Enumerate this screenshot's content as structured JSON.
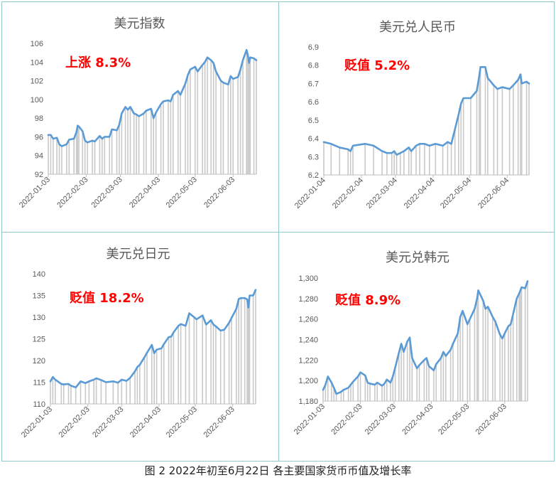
{
  "caption": "图 2 2022年初至6月22日 各主要国家货币币值及增长率",
  "colors": {
    "line": "#5b9bd5",
    "bar": "#c9c9c9",
    "annotation": "#ff0000",
    "border": "#8fc9c9"
  },
  "chart_data": [
    {
      "type": "line",
      "title": "美元指数",
      "annotation": "上涨 8.3%",
      "ylim": [
        92,
        106
      ],
      "yticks": [
        "92",
        "94",
        "96",
        "98",
        "100",
        "102",
        "104",
        "106"
      ],
      "xlim": [
        "2022-01-03",
        "2022-06-22"
      ],
      "xticks": [
        "2022-01-03",
        "2022-02-03",
        "2022-03-03",
        "2022-04-03",
        "2022-05-03",
        "2022-06-03"
      ],
      "points": [
        [
          "2022-01-03",
          96.2
        ],
        [
          "2022-01-05",
          96.2
        ],
        [
          "2022-01-07",
          95.8
        ],
        [
          "2022-01-10",
          95.9
        ],
        [
          "2022-01-12",
          95.2
        ],
        [
          "2022-01-14",
          95.0
        ],
        [
          "2022-01-18",
          95.2
        ],
        [
          "2022-01-20",
          95.7
        ],
        [
          "2022-01-24",
          95.8
        ],
        [
          "2022-01-26",
          96.5
        ],
        [
          "2022-01-27",
          97.2
        ],
        [
          "2022-01-28",
          97.1
        ],
        [
          "2022-01-31",
          96.6
        ],
        [
          "2022-02-02",
          95.6
        ],
        [
          "2022-02-04",
          95.4
        ],
        [
          "2022-02-08",
          95.6
        ],
        [
          "2022-02-10",
          95.5
        ],
        [
          "2022-02-14",
          96.1
        ],
        [
          "2022-02-16",
          95.8
        ],
        [
          "2022-02-18",
          96.0
        ],
        [
          "2022-02-22",
          96.0
        ],
        [
          "2022-02-24",
          96.8
        ],
        [
          "2022-02-28",
          96.7
        ],
        [
          "2022-03-02",
          97.3
        ],
        [
          "2022-03-04",
          98.5
        ],
        [
          "2022-03-07",
          99.2
        ],
        [
          "2022-03-09",
          98.9
        ],
        [
          "2022-03-11",
          99.2
        ],
        [
          "2022-03-14",
          98.5
        ],
        [
          "2022-03-16",
          98.4
        ],
        [
          "2022-03-18",
          98.2
        ],
        [
          "2022-03-22",
          98.5
        ],
        [
          "2022-03-24",
          98.8
        ],
        [
          "2022-03-28",
          99.0
        ],
        [
          "2022-03-30",
          98.0
        ],
        [
          "2022-04-01",
          98.6
        ],
        [
          "2022-04-05",
          99.5
        ],
        [
          "2022-04-07",
          99.8
        ],
        [
          "2022-04-11",
          99.9
        ],
        [
          "2022-04-13",
          99.8
        ],
        [
          "2022-04-15",
          100.5
        ],
        [
          "2022-04-19",
          100.9
        ],
        [
          "2022-04-21",
          100.5
        ],
        [
          "2022-04-25",
          101.7
        ],
        [
          "2022-04-27",
          102.6
        ],
        [
          "2022-04-29",
          103.2
        ],
        [
          "2022-05-03",
          103.5
        ],
        [
          "2022-05-05",
          103.0
        ],
        [
          "2022-05-09",
          103.7
        ],
        [
          "2022-05-11",
          104.0
        ],
        [
          "2022-05-13",
          104.5
        ],
        [
          "2022-05-16",
          104.2
        ],
        [
          "2022-05-18",
          103.9
        ],
        [
          "2022-05-20",
          103.0
        ],
        [
          "2022-05-24",
          102.0
        ],
        [
          "2022-05-26",
          101.8
        ],
        [
          "2022-05-30",
          101.6
        ],
        [
          "2022-06-01",
          102.5
        ],
        [
          "2022-06-03",
          102.2
        ],
        [
          "2022-06-07",
          102.4
        ],
        [
          "2022-06-09",
          103.2
        ],
        [
          "2022-06-11",
          104.2
        ],
        [
          "2022-06-14",
          105.3
        ],
        [
          "2022-06-15",
          104.8
        ],
        [
          "2022-06-16",
          103.9
        ],
        [
          "2022-06-17",
          104.5
        ],
        [
          "2022-06-20",
          104.4
        ],
        [
          "2022-06-22",
          104.2
        ]
      ]
    },
    {
      "type": "line",
      "title": "美元兑人民币",
      "annotation": "贬值 5.2%",
      "ylim": [
        6.2,
        6.9
      ],
      "yticks": [
        "6.2",
        "6.3",
        "6.4",
        "6.5",
        "6.6",
        "6.7",
        "6.8",
        "6.9"
      ],
      "xlim": [
        "2022-01-04",
        "2022-06-22"
      ],
      "xticks": [
        "2022-01-04",
        "2022-02-04",
        "2022-03-04",
        "2022-04-04",
        "2022-05-04",
        "2022-06-04"
      ],
      "points": [
        [
          "2022-01-04",
          6.38
        ],
        [
          "2022-01-10",
          6.37
        ],
        [
          "2022-01-17",
          6.35
        ],
        [
          "2022-01-24",
          6.34
        ],
        [
          "2022-01-26",
          6.33
        ],
        [
          "2022-01-28",
          6.36
        ],
        [
          "2022-02-07",
          6.37
        ],
        [
          "2022-02-14",
          6.36
        ],
        [
          "2022-02-21",
          6.33
        ],
        [
          "2022-02-25",
          6.32
        ],
        [
          "2022-03-01",
          6.32
        ],
        [
          "2022-03-03",
          6.33
        ],
        [
          "2022-03-05",
          6.31
        ],
        [
          "2022-03-08",
          6.32
        ],
        [
          "2022-03-11",
          6.33
        ],
        [
          "2022-03-15",
          6.35
        ],
        [
          "2022-03-17",
          6.33
        ],
        [
          "2022-03-21",
          6.36
        ],
        [
          "2022-03-24",
          6.37
        ],
        [
          "2022-03-28",
          6.37
        ],
        [
          "2022-04-01",
          6.36
        ],
        [
          "2022-04-06",
          6.37
        ],
        [
          "2022-04-12",
          6.36
        ],
        [
          "2022-04-16",
          6.38
        ],
        [
          "2022-04-19",
          6.37
        ],
        [
          "2022-04-22",
          6.45
        ],
        [
          "2022-04-25",
          6.53
        ],
        [
          "2022-04-27",
          6.59
        ],
        [
          "2022-04-29",
          6.62
        ],
        [
          "2022-05-05",
          6.62
        ],
        [
          "2022-05-10",
          6.66
        ],
        [
          "2022-05-12",
          6.74
        ],
        [
          "2022-05-13",
          6.79
        ],
        [
          "2022-05-17",
          6.79
        ],
        [
          "2022-05-19",
          6.73
        ],
        [
          "2022-05-24",
          6.69
        ],
        [
          "2022-05-27",
          6.67
        ],
        [
          "2022-05-31",
          6.68
        ],
        [
          "2022-06-06",
          6.67
        ],
        [
          "2022-06-09",
          6.69
        ],
        [
          "2022-06-13",
          6.72
        ],
        [
          "2022-06-15",
          6.75
        ],
        [
          "2022-06-16",
          6.7
        ],
        [
          "2022-06-20",
          6.71
        ],
        [
          "2022-06-22",
          6.7
        ]
      ]
    },
    {
      "type": "line",
      "title": "美元兑日元",
      "annotation": "贬值 18.2%",
      "ylim": [
        110,
        140
      ],
      "yticks": [
        "110",
        "115",
        "120",
        "125",
        "130",
        "135",
        "140"
      ],
      "xlim": [
        "2022-01-03",
        "2022-06-22"
      ],
      "xticks": [
        "2022-01-03",
        "2022-02-03",
        "2022-03-03",
        "2022-04-03",
        "2022-05-03",
        "2022-06-03"
      ],
      "points": [
        [
          "2022-01-03",
          115.2
        ],
        [
          "2022-01-05",
          116.2
        ],
        [
          "2022-01-07",
          115.6
        ],
        [
          "2022-01-12",
          114.6
        ],
        [
          "2022-01-14",
          114.5
        ],
        [
          "2022-01-18",
          114.6
        ],
        [
          "2022-01-20",
          114.2
        ],
        [
          "2022-01-24",
          113.8
        ],
        [
          "2022-01-28",
          115.2
        ],
        [
          "2022-02-01",
          114.8
        ],
        [
          "2022-02-04",
          115.2
        ],
        [
          "2022-02-08",
          115.6
        ],
        [
          "2022-02-10",
          115.9
        ],
        [
          "2022-02-14",
          115.5
        ],
        [
          "2022-02-18",
          115.0
        ],
        [
          "2022-02-24",
          115.2
        ],
        [
          "2022-02-28",
          114.9
        ],
        [
          "2022-03-03",
          115.6
        ],
        [
          "2022-03-07",
          115.3
        ],
        [
          "2022-03-10",
          116.0
        ],
        [
          "2022-03-14",
          117.5
        ],
        [
          "2022-03-16",
          118.5
        ],
        [
          "2022-03-18",
          119.0
        ],
        [
          "2022-03-22",
          120.8
        ],
        [
          "2022-03-24",
          121.8
        ],
        [
          "2022-03-28",
          123.6
        ],
        [
          "2022-03-30",
          121.7
        ],
        [
          "2022-04-01",
          122.5
        ],
        [
          "2022-04-05",
          122.8
        ],
        [
          "2022-04-07",
          123.8
        ],
        [
          "2022-04-11",
          125.4
        ],
        [
          "2022-04-13",
          125.5
        ],
        [
          "2022-04-15",
          126.5
        ],
        [
          "2022-04-19",
          128.0
        ],
        [
          "2022-04-21",
          128.4
        ],
        [
          "2022-04-25",
          128.0
        ],
        [
          "2022-04-28",
          130.9
        ],
        [
          "2022-05-02",
          130.0
        ],
        [
          "2022-05-04",
          129.5
        ],
        [
          "2022-05-09",
          130.4
        ],
        [
          "2022-05-12",
          128.3
        ],
        [
          "2022-05-16",
          129.3
        ],
        [
          "2022-05-18",
          128.3
        ],
        [
          "2022-05-20",
          127.9
        ],
        [
          "2022-05-24",
          126.9
        ],
        [
          "2022-05-27",
          127.1
        ],
        [
          "2022-05-31",
          128.7
        ],
        [
          "2022-06-02",
          129.8
        ],
        [
          "2022-06-06",
          131.9
        ],
        [
          "2022-06-08",
          134.2
        ],
        [
          "2022-06-10",
          134.4
        ],
        [
          "2022-06-13",
          134.4
        ],
        [
          "2022-06-15",
          134.1
        ],
        [
          "2022-06-16",
          132.2
        ],
        [
          "2022-06-17",
          135.0
        ],
        [
          "2022-06-20",
          135.0
        ],
        [
          "2022-06-22",
          136.3
        ]
      ]
    },
    {
      "type": "line",
      "title": "美元兑韩元",
      "annotation": "贬值 8.9%",
      "ylim": [
        1180,
        1300
      ],
      "yticks": [
        "1,180",
        "1,200",
        "1,220",
        "1,240",
        "1,260",
        "1,280",
        "1,300"
      ],
      "xlim": [
        "2022-01-03",
        "2022-06-22"
      ],
      "xticks": [
        "2022-01-03",
        "2022-02-03",
        "2022-03-03",
        "2022-04-03",
        "2022-05-03",
        "2022-06-03"
      ],
      "points": [
        [
          "2022-01-03",
          1191
        ],
        [
          "2022-01-05",
          1196
        ],
        [
          "2022-01-07",
          1204
        ],
        [
          "2022-01-10",
          1198
        ],
        [
          "2022-01-12",
          1193
        ],
        [
          "2022-01-14",
          1187
        ],
        [
          "2022-01-18",
          1189
        ],
        [
          "2022-01-20",
          1191
        ],
        [
          "2022-01-24",
          1193
        ],
        [
          "2022-01-26",
          1196
        ],
        [
          "2022-01-28",
          1199
        ],
        [
          "2022-02-01",
          1204
        ],
        [
          "2022-02-03",
          1208
        ],
        [
          "2022-02-07",
          1205
        ],
        [
          "2022-02-09",
          1198
        ],
        [
          "2022-02-11",
          1197
        ],
        [
          "2022-02-15",
          1196
        ],
        [
          "2022-02-17",
          1198
        ],
        [
          "2022-02-21",
          1195
        ],
        [
          "2022-02-23",
          1197
        ],
        [
          "2022-02-25",
          1201
        ],
        [
          "2022-02-28",
          1198
        ],
        [
          "2022-03-02",
          1204
        ],
        [
          "2022-03-04",
          1213
        ],
        [
          "2022-03-07",
          1227
        ],
        [
          "2022-03-09",
          1236
        ],
        [
          "2022-03-11",
          1228
        ],
        [
          "2022-03-14",
          1238
        ],
        [
          "2022-03-16",
          1242
        ],
        [
          "2022-03-18",
          1222
        ],
        [
          "2022-03-22",
          1212
        ],
        [
          "2022-03-24",
          1215
        ],
        [
          "2022-03-28",
          1220
        ],
        [
          "2022-03-30",
          1222
        ],
        [
          "2022-04-01",
          1214
        ],
        [
          "2022-04-05",
          1210
        ],
        [
          "2022-04-07",
          1216
        ],
        [
          "2022-04-11",
          1222
        ],
        [
          "2022-04-13",
          1228
        ],
        [
          "2022-04-15",
          1224
        ],
        [
          "2022-04-19",
          1230
        ],
        [
          "2022-04-21",
          1236
        ],
        [
          "2022-04-25",
          1246
        ],
        [
          "2022-04-27",
          1262
        ],
        [
          "2022-04-29",
          1268
        ],
        [
          "2022-05-03",
          1255
        ],
        [
          "2022-05-05",
          1260
        ],
        [
          "2022-05-09",
          1270
        ],
        [
          "2022-05-11",
          1280
        ],
        [
          "2022-05-12",
          1288
        ],
        [
          "2022-05-16",
          1278
        ],
        [
          "2022-05-18",
          1270
        ],
        [
          "2022-05-20",
          1272
        ],
        [
          "2022-05-24",
          1262
        ],
        [
          "2022-05-26",
          1258
        ],
        [
          "2022-05-30",
          1245
        ],
        [
          "2022-06-01",
          1241
        ],
        [
          "2022-06-03",
          1246
        ],
        [
          "2022-06-06",
          1253
        ],
        [
          "2022-06-08",
          1255
        ],
        [
          "2022-06-10",
          1265
        ],
        [
          "2022-06-13",
          1280
        ],
        [
          "2022-06-15",
          1285
        ],
        [
          "2022-06-16",
          1288
        ],
        [
          "2022-06-17",
          1291
        ],
        [
          "2022-06-20",
          1290
        ],
        [
          "2022-06-22",
          1297
        ]
      ]
    }
  ]
}
